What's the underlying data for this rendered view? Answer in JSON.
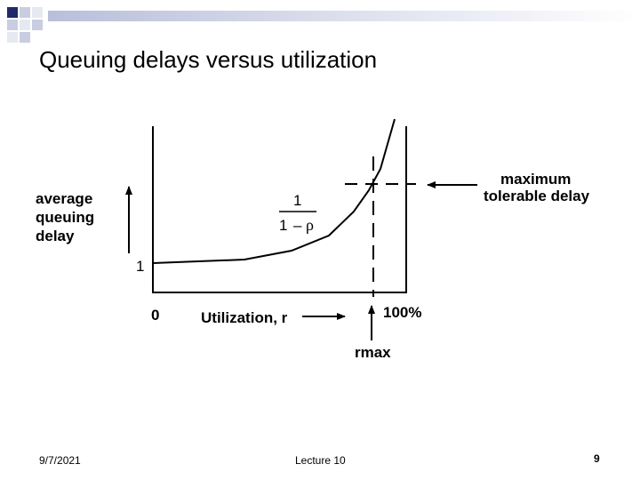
{
  "slide": {
    "title": "Queuing delays versus utilization"
  },
  "diagram": {
    "y_axis_label": [
      "average",
      "queuing",
      "delay"
    ],
    "y_tick_label": "1",
    "x_origin_label": "0",
    "x_axis_label": "Utilization, r",
    "x_max_label": "100%",
    "formula_numerator": "1",
    "formula_denominator_number": "1",
    "formula_denominator_operator": "–",
    "formula_denominator_symbol": "ρ",
    "max_delay_label": [
      "maximum",
      "tolerable delay"
    ],
    "rmax_label": "rmax"
  },
  "footer": {
    "date": "9/7/2021",
    "lecture": "Lecture 10",
    "page": "9"
  },
  "colors": {
    "decoration_navy": "#1f2a6e",
    "decoration_light": "#c9cde2",
    "decoration_fade": "#e7e9f2"
  }
}
